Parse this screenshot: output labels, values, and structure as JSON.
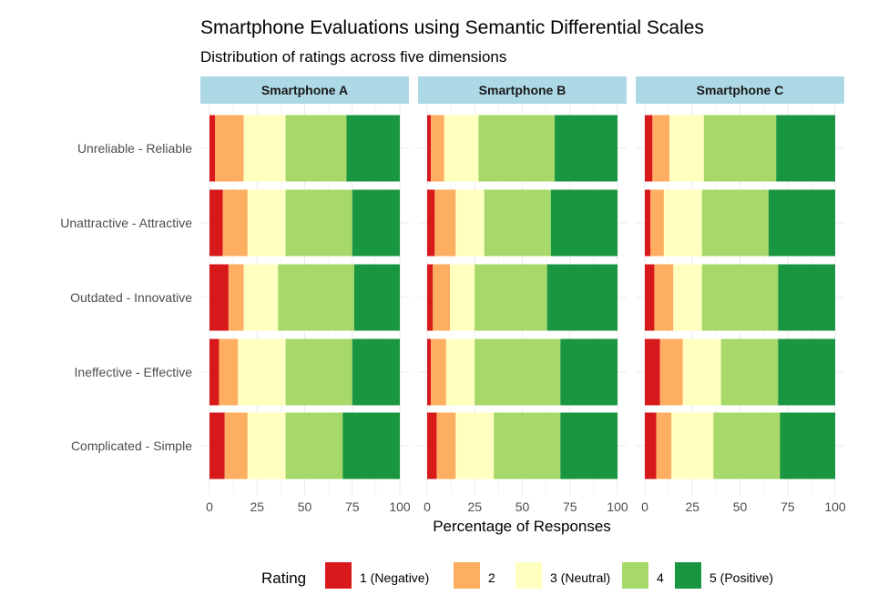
{
  "chart_data": {
    "type": "bar",
    "orientation": "horizontal",
    "stacked": true,
    "title": "Smartphone Evaluations using Semantic Differential Scales",
    "subtitle": "Distribution of ratings across five dimensions",
    "xlabel": "Percentage of Responses",
    "xlim": [
      0,
      100
    ],
    "xticks": [
      0,
      25,
      50,
      75,
      100
    ],
    "categories": [
      "Unreliable - Reliable",
      "Unattractive - Attractive",
      "Outdated - Innovative",
      "Ineffective - Effective",
      "Complicated - Simple"
    ],
    "legend": {
      "title": "Rating",
      "placement": "bottom",
      "entries": [
        "1 (Negative)",
        "2",
        "3 (Neutral)",
        "4",
        "5 (Positive)"
      ],
      "colors": [
        "#d7191c",
        "#fdae61",
        "#ffffbf",
        "#a6d96a",
        "#1a9641"
      ]
    },
    "strip_color": "#add8e6",
    "grid": true,
    "facets": [
      {
        "name": "Smartphone A",
        "rows": [
          [
            3,
            15,
            22,
            32,
            28
          ],
          [
            7,
            13,
            20,
            35,
            25
          ],
          [
            10,
            8,
            18,
            40,
            24
          ],
          [
            5,
            10,
            25,
            35,
            25
          ],
          [
            8,
            12,
            20,
            30,
            30
          ]
        ]
      },
      {
        "name": "Smartphone B",
        "rows": [
          [
            2,
            7,
            18,
            40,
            33
          ],
          [
            4,
            11,
            15,
            35,
            35
          ],
          [
            3,
            9,
            13,
            38,
            37
          ],
          [
            2,
            8,
            15,
            45,
            30
          ],
          [
            5,
            10,
            20,
            35,
            30
          ]
        ]
      },
      {
        "name": "Smartphone C",
        "rows": [
          [
            4,
            9,
            18,
            38,
            31
          ],
          [
            3,
            7,
            20,
            35,
            35
          ],
          [
            5,
            10,
            15,
            40,
            30
          ],
          [
            8,
            12,
            20,
            30,
            30
          ],
          [
            6,
            8,
            22,
            35,
            29
          ]
        ]
      }
    ]
  }
}
